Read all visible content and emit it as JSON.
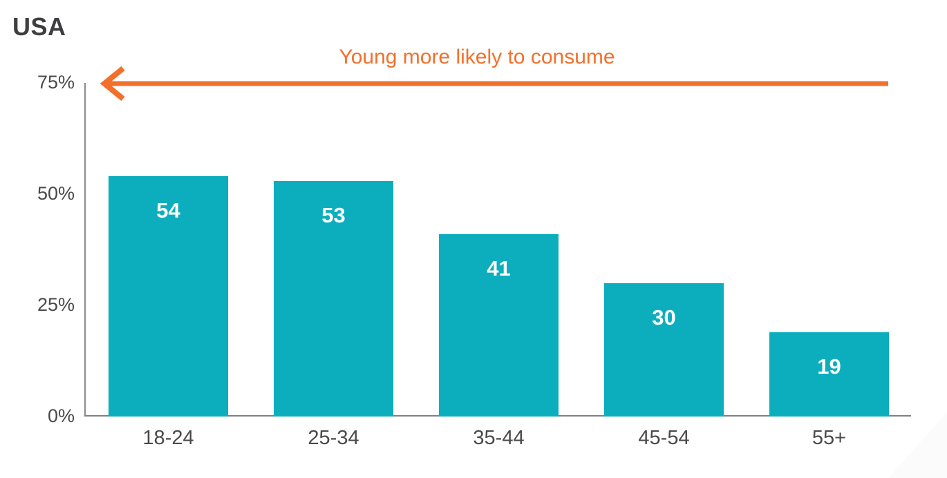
{
  "title": "USA",
  "annotation": {
    "text": "Young more likely to consume"
  },
  "colors": {
    "bar_teal": "#0caebe",
    "accent_orange": "#f2702c",
    "title_dark": "#3e3e40",
    "axis_gray": "#808080",
    "tick_label_gray": "#4a4a4c",
    "value_label_white": "#ffffff"
  },
  "chart_data": {
    "type": "bar",
    "title": "USA",
    "categories": [
      "18-24",
      "25-34",
      "35-44",
      "45-54",
      "55+"
    ],
    "values": [
      54,
      53,
      41,
      30,
      19
    ],
    "value_labels": [
      "54",
      "53",
      "41",
      "30",
      "19"
    ],
    "yticks": [
      {
        "label": "0%",
        "value": 0
      },
      {
        "label": "25%",
        "value": 25
      },
      {
        "label": "50%",
        "value": 50
      },
      {
        "label": "75%",
        "value": 75
      }
    ],
    "ylim": [
      0,
      75
    ],
    "xlabel": "",
    "ylabel": "",
    "grid": false,
    "legend": "none",
    "annotation": "Young more likely to consume",
    "annotation_arrow_direction": "left"
  }
}
